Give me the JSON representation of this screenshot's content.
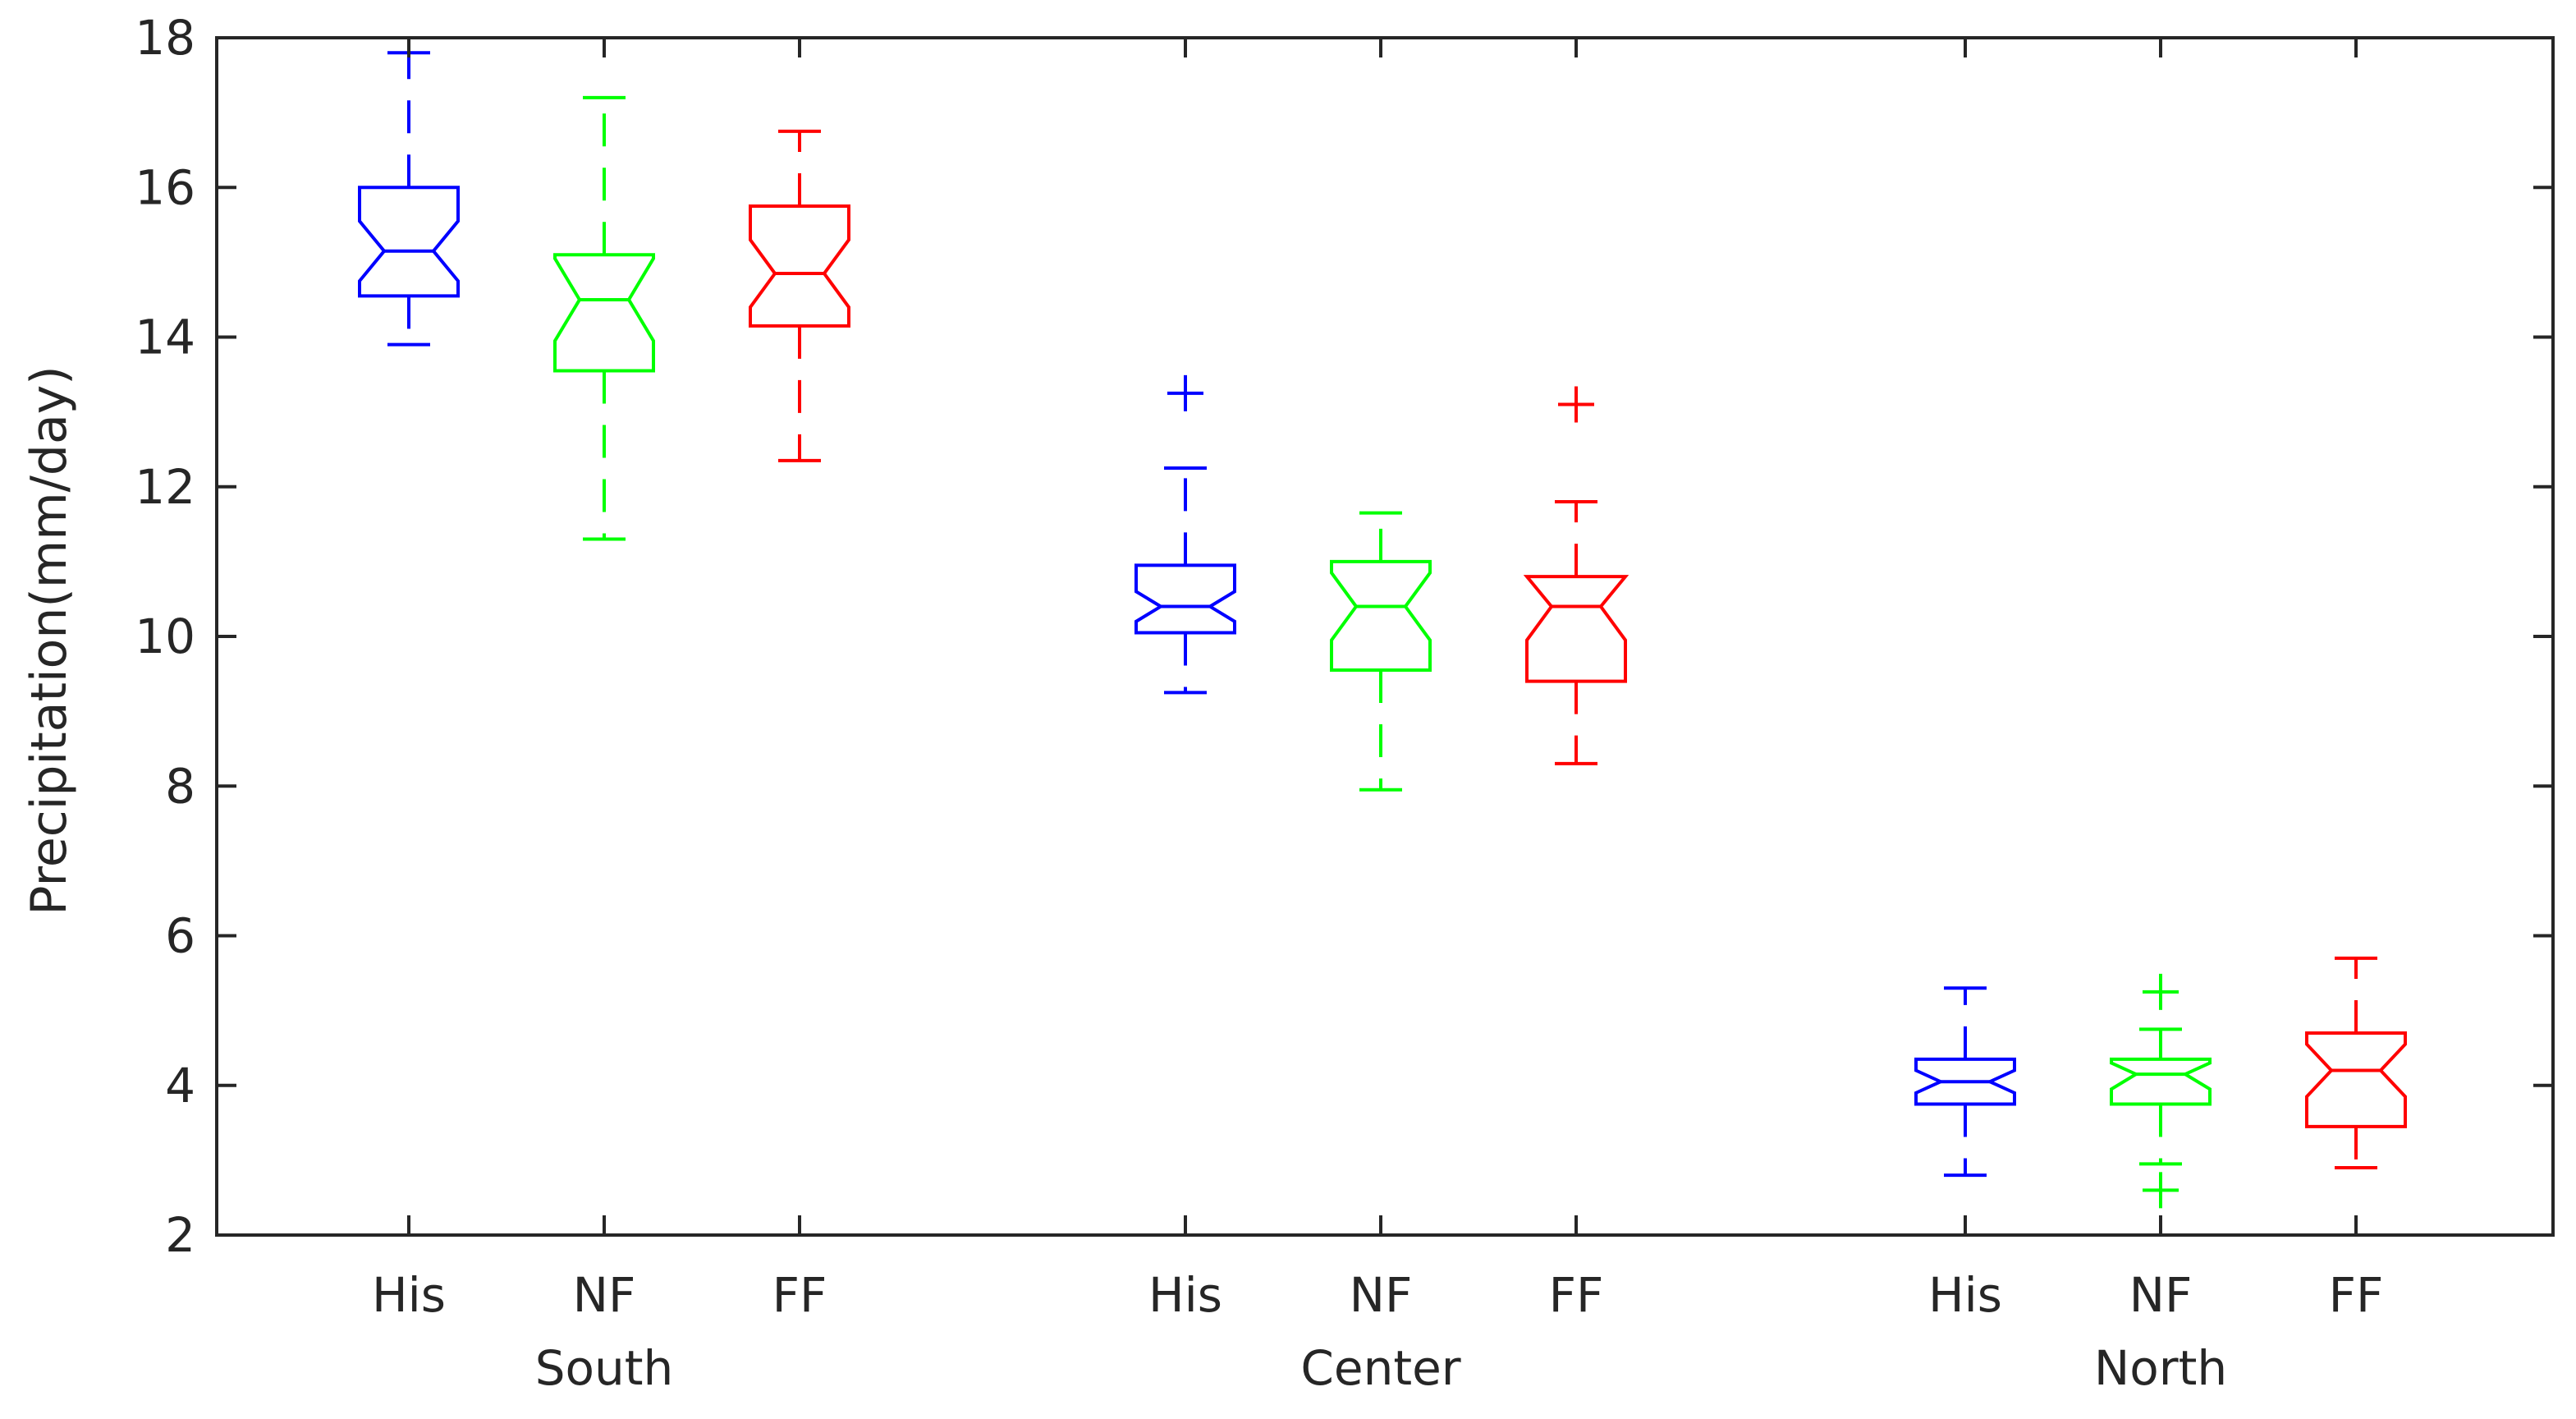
{
  "chart_data": {
    "type": "boxplot",
    "title": "",
    "xlabel": "",
    "ylabel": "Precipitation(mm/day)",
    "ylim": [
      2,
      18
    ],
    "yticks": [
      "2",
      "4",
      "6",
      "8",
      "10",
      "12",
      "14",
      "16",
      "18"
    ],
    "grid": false,
    "legend": "none",
    "notched": true,
    "series_colors": {
      "His": "#0000ff",
      "NF": "#00ff00",
      "FF": "#ff0000"
    },
    "groups": [
      {
        "name": "South",
        "boxes": [
          {
            "label": "His",
            "whisker_low": 13.9,
            "q1": 14.55,
            "median": 15.15,
            "q3": 16.0,
            "whisker_high": 17.8,
            "notch_low": 14.75,
            "notch_high": 15.55,
            "outliers": []
          },
          {
            "label": "NF",
            "whisker_low": 11.3,
            "q1": 13.55,
            "median": 14.5,
            "q3": 15.1,
            "whisker_high": 17.2,
            "notch_low": 13.95,
            "notch_high": 15.05,
            "outliers": []
          },
          {
            "label": "FF",
            "whisker_low": 12.35,
            "q1": 14.15,
            "median": 14.85,
            "q3": 15.75,
            "whisker_high": 16.75,
            "notch_low": 14.4,
            "notch_high": 15.3,
            "outliers": []
          }
        ]
      },
      {
        "name": "Center",
        "boxes": [
          {
            "label": "His",
            "whisker_low": 9.25,
            "q1": 10.05,
            "median": 10.4,
            "q3": 10.95,
            "whisker_high": 12.25,
            "notch_low": 10.2,
            "notch_high": 10.6,
            "outliers": [
              13.25
            ]
          },
          {
            "label": "NF",
            "whisker_low": 7.95,
            "q1": 9.55,
            "median": 10.4,
            "q3": 11.0,
            "whisker_high": 11.65,
            "notch_low": 9.95,
            "notch_high": 10.85,
            "outliers": []
          },
          {
            "label": "FF",
            "whisker_low": 8.3,
            "q1": 9.4,
            "median": 10.4,
            "q3": 10.8,
            "whisker_high": 11.8,
            "notch_low": 9.95,
            "notch_high": 10.8,
            "outliers": [
              13.1
            ]
          }
        ]
      },
      {
        "name": "North",
        "boxes": [
          {
            "label": "His",
            "whisker_low": 2.8,
            "q1": 3.75,
            "median": 4.05,
            "q3": 4.35,
            "whisker_high": 5.3,
            "notch_low": 3.9,
            "notch_high": 4.2,
            "outliers": []
          },
          {
            "label": "NF",
            "whisker_low": 2.95,
            "q1": 3.75,
            "median": 4.15,
            "q3": 4.35,
            "whisker_high": 4.75,
            "notch_low": 3.95,
            "notch_high": 4.3,
            "outliers": [
              2.6,
              5.25
            ]
          },
          {
            "label": "FF",
            "whisker_low": 2.9,
            "q1": 3.45,
            "median": 4.2,
            "q3": 4.7,
            "whisker_high": 5.7,
            "notch_low": 3.85,
            "notch_high": 4.55,
            "outliers": []
          }
        ]
      }
    ]
  }
}
